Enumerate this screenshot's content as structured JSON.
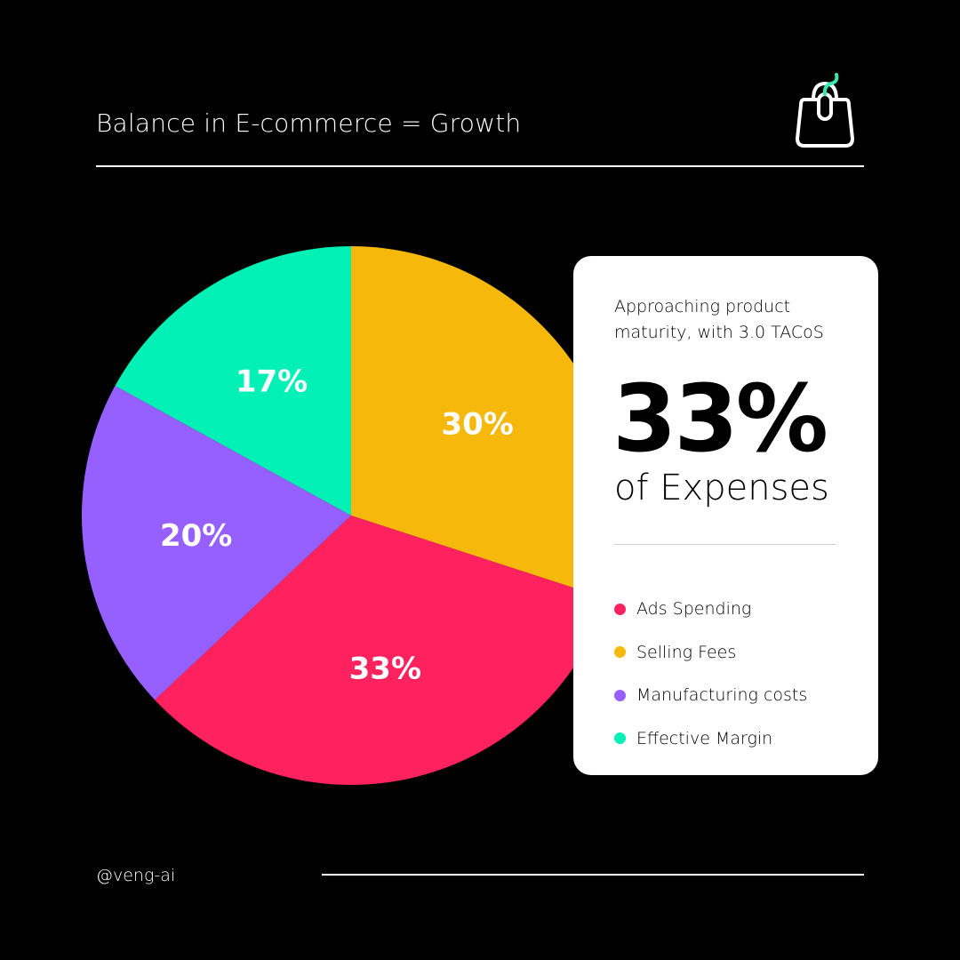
{
  "header": {
    "title": "Balance in E-commerce = Growth",
    "icon": "shopping-bag-mouse-icon"
  },
  "chart_data": {
    "type": "pie",
    "start": "top, clockwise",
    "slices": [
      {
        "label": "Selling Fees",
        "value": 30,
        "display": "30%",
        "color": "#F6B80B"
      },
      {
        "label": "Ads Spending",
        "value": 33,
        "display": "33%",
        "color": "#FF225E"
      },
      {
        "label": "Manufacturing costs",
        "value": 20,
        "display": "20%",
        "color": "#9560FF"
      },
      {
        "label": "Effective Margin",
        "value": 17,
        "display": "17%",
        "color": "#00F0B5"
      }
    ]
  },
  "card": {
    "subtitle": "Approaching product maturity, with 3.0 TACoS",
    "big_value": "33%",
    "big_label": "of Expenses",
    "legend": [
      {
        "label": "Ads Spending",
        "color": "#FF225E"
      },
      {
        "label": "Selling Fees",
        "color": "#F6B80B"
      },
      {
        "label": "Manufacturing costs",
        "color": "#9560FF"
      },
      {
        "label": "Effective Margin",
        "color": "#00F0B5"
      }
    ]
  },
  "footer": {
    "handle": "@veng-ai"
  }
}
